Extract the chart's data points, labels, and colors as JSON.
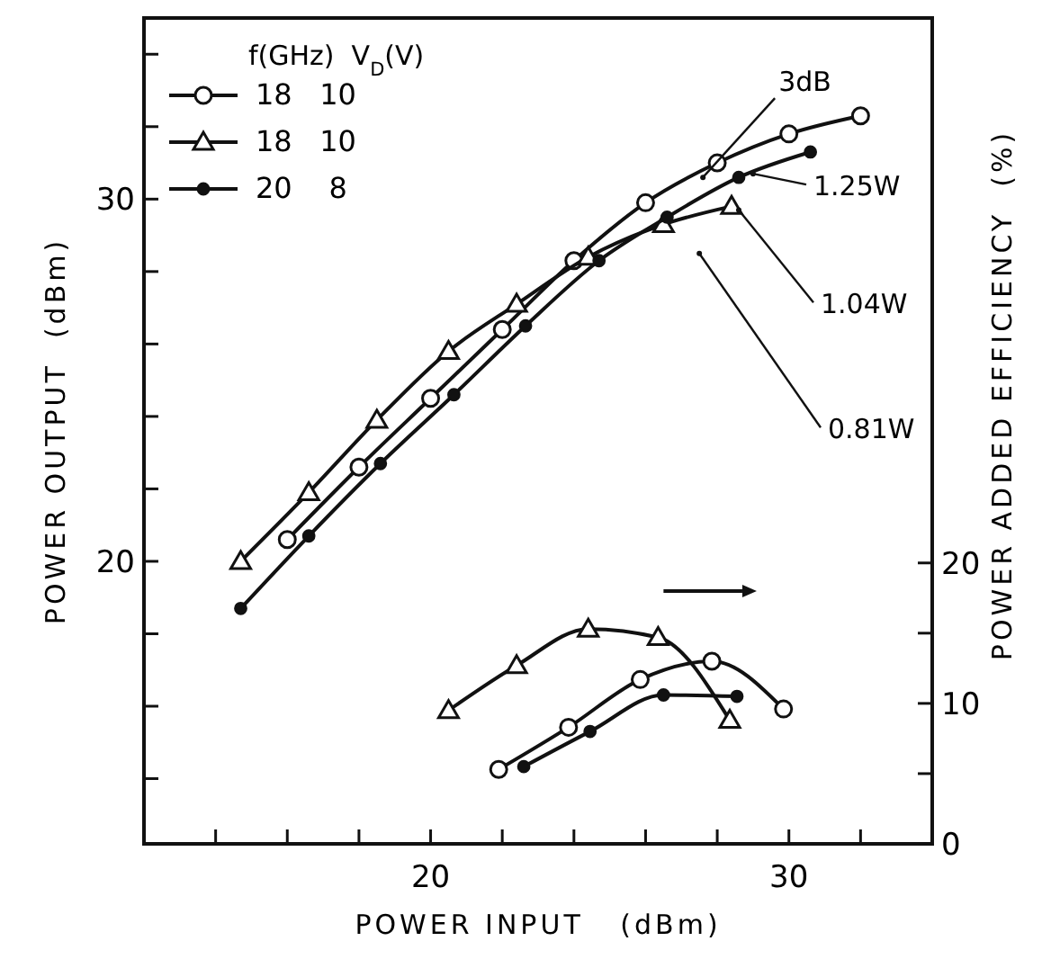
{
  "chart_data": {
    "type": "line",
    "xlabel": "POWER INPUT   (dBm)",
    "ylabel": "POWER OUTPUT  (dBm)",
    "y2label": "POWER ADDED EFFICIENCY  (%)",
    "legend_title": "f(GHz)  V$_{D}$(V)",
    "legend": "top left",
    "grid": false,
    "line_style": "solid",
    "xlim": [
      12,
      34
    ],
    "xticks": [
      {
        "value": 14,
        "label": null
      },
      {
        "value": 16,
        "label": null
      },
      {
        "value": 18,
        "label": null
      },
      20,
      {
        "value": 22,
        "label": null
      },
      {
        "value": 24,
        "label": null
      },
      {
        "value": 26,
        "label": null
      },
      {
        "value": 28,
        "label": null
      },
      30,
      {
        "value": 32,
        "label": null
      }
    ],
    "ylim": [
      12.2,
      35
    ],
    "yticks": [
      {
        "value": 14,
        "label": null
      },
      {
        "value": 16,
        "label": null
      },
      {
        "value": 18,
        "label": null
      },
      20,
      {
        "value": 22,
        "label": null
      },
      {
        "value": 24,
        "label": null
      },
      {
        "value": 26,
        "label": null
      },
      {
        "value": 28,
        "label": null
      },
      30,
      {
        "value": 32,
        "label": null
      },
      {
        "value": 34,
        "label": null
      }
    ],
    "y2lim": [
      0,
      58.8
    ],
    "y2ticks": [
      0,
      {
        "value": 5,
        "label": null
      },
      10,
      {
        "value": 15,
        "label": null
      },
      20
    ],
    "series": [
      {
        "name": "18   10",
        "color": "#111111",
        "marker": "circle",
        "x": [
          16,
          18,
          20,
          22,
          24,
          26,
          28,
          30,
          32
        ],
        "values": [
          20.6,
          22.6,
          24.5,
          26.4,
          28.3,
          29.9,
          31.0,
          31.8,
          32.3
        ]
      },
      {
        "name": "18   10",
        "color": "#111111",
        "marker": "triangle",
        "x": [
          14.7,
          16.6,
          18.5,
          20.5,
          22.4,
          24.4,
          26.5,
          28.4
        ],
        "values": [
          20.0,
          21.9,
          23.9,
          25.8,
          27.1,
          28.4,
          29.3,
          29.8
        ]
      },
      {
        "name": "20    8",
        "color": "#111111",
        "marker": "circle",
        "x": [
          14.7,
          16.6,
          18.6,
          20.65,
          22.65,
          24.7,
          26.6,
          28.6,
          30.6
        ],
        "values": [
          18.7,
          20.7,
          22.7,
          24.6,
          26.5,
          28.3,
          29.5,
          30.6,
          31.3
        ]
      },
      {
        "color": "#111111",
        "marker": "circle",
        "axis": "y2",
        "x": [
          21.9,
          23.85,
          25.85,
          27.85,
          29.85
        ],
        "values": [
          5.3,
          8.3,
          11.7,
          13.0,
          9.6
        ]
      },
      {
        "color": "#111111",
        "marker": "triangle",
        "axis": "y2",
        "x": [
          20.5,
          22.4,
          24.4,
          26.35,
          28.35
        ],
        "values": [
          9.5,
          12.7,
          15.3,
          14.7,
          8.8
        ]
      },
      {
        "color": "#111111",
        "marker": "circle",
        "axis": "y2",
        "x": [
          22.6,
          24.45,
          26.5,
          28.55
        ],
        "values": [
          5.5,
          8.0,
          10.6,
          10.5
        ]
      }
    ],
    "annotations": [
      {
        "text": "3dB",
        "x": 27.6,
        "y": 30.6
      },
      {
        "text": "1.25W",
        "x": 29,
        "y": 30.7
      },
      {
        "text": "1.04W",
        "x": 28.6,
        "y": 29.7
      },
      {
        "text": "0.81W",
        "x": 27.5,
        "y": 28.5
      }
    ]
  }
}
